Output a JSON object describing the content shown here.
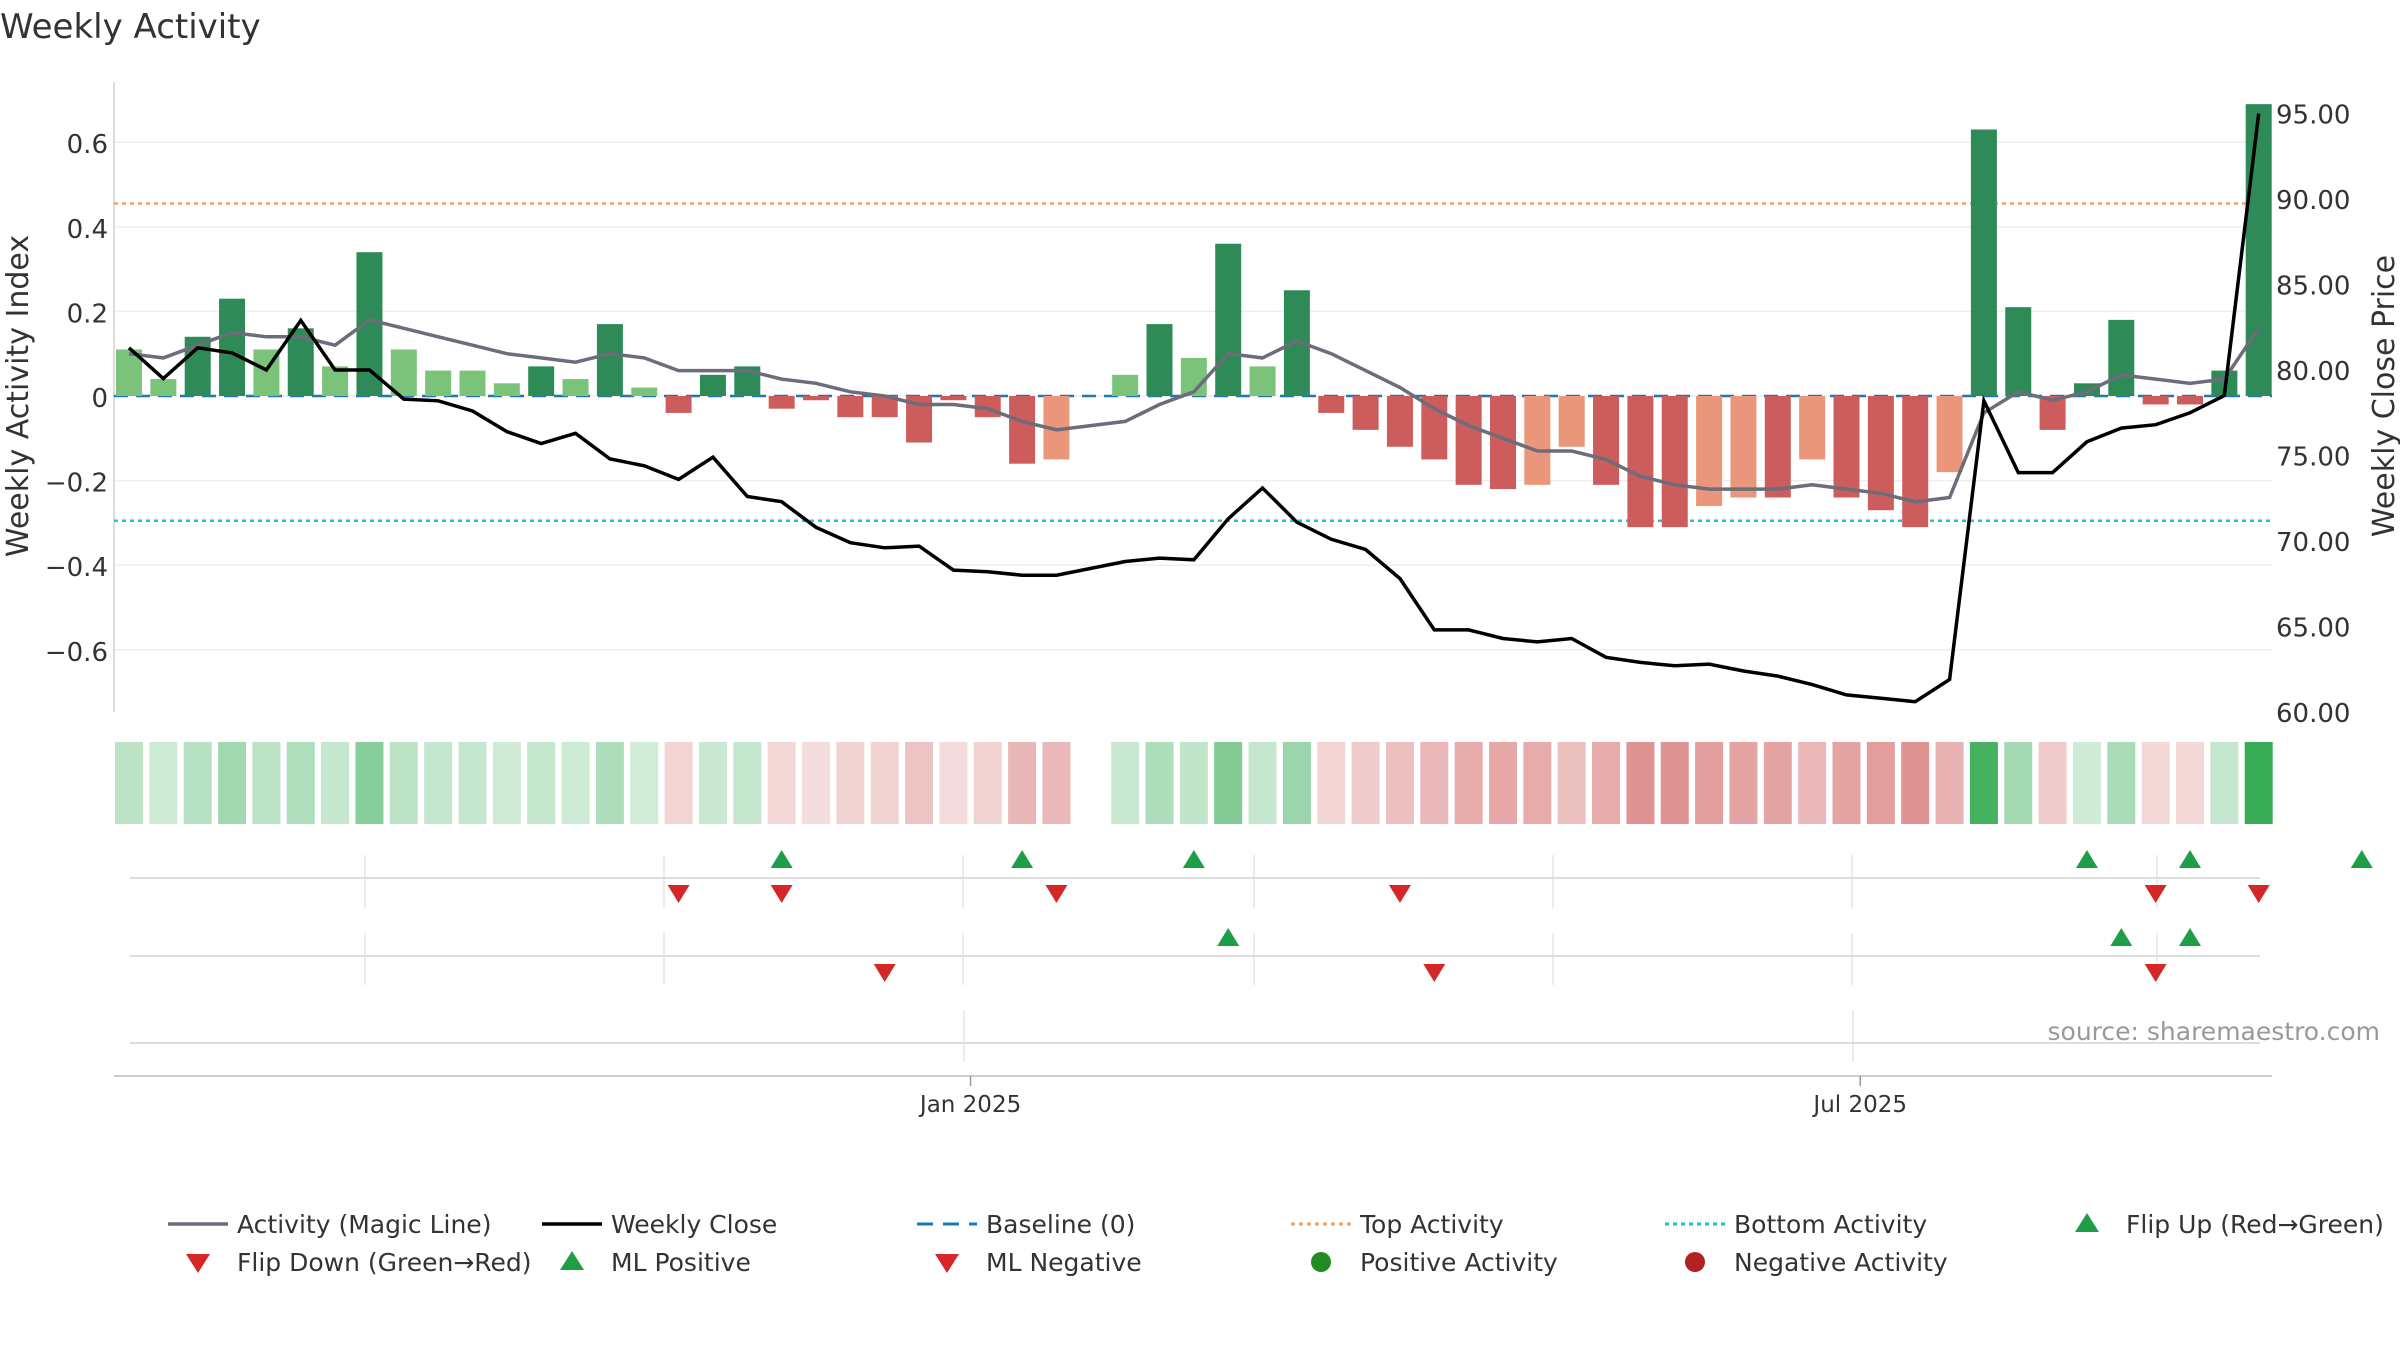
{
  "chart_data": {
    "type": "bar",
    "title": "Weekly Activity",
    "ylabel": "Weekly Activity Index",
    "y2label": "Weekly Close Price",
    "source": "source: sharemaestro.com",
    "ylim": [
      -0.75,
      0.75
    ],
    "y2lim": [
      60,
      97
    ],
    "yticks": [
      0.6,
      0.4,
      0.2,
      0,
      -0.2,
      -0.4,
      -0.6
    ],
    "ytick_labels": [
      "0.6",
      "0.4",
      "0.2",
      "0",
      "−0.2",
      "−0.4",
      "−0.6"
    ],
    "y2ticks": [
      95,
      90,
      85,
      80,
      75,
      70,
      65,
      60
    ],
    "y2tick_labels": [
      "95.00",
      "90.00",
      "85.00",
      "80.00",
      "75.00",
      "70.00",
      "65.00",
      "60.00"
    ],
    "xticks": [
      {
        "index": 24.5,
        "label": "Jan 2025"
      },
      {
        "index": 50.4,
        "label": "Jul 2025"
      }
    ],
    "reference_lines": {
      "top": 0.455,
      "bottom": -0.295,
      "baseline": 0
    },
    "activity": [
      0.11,
      0.04,
      0.14,
      0.23,
      0.11,
      0.16,
      0.07,
      0.34,
      0.11,
      0.06,
      0.06,
      0.03,
      0.07,
      0.04,
      0.17,
      0.02,
      -0.04,
      0.05,
      0.07,
      -0.03,
      -0.01,
      -0.05,
      -0.05,
      -0.11,
      -0.01,
      -0.05,
      -0.16,
      -0.15,
      null,
      0.05,
      0.17,
      0.09,
      0.36,
      0.07,
      0.25,
      -0.04,
      -0.08,
      -0.12,
      -0.15,
      -0.21,
      -0.22,
      -0.21,
      -0.12,
      -0.21,
      -0.31,
      -0.31,
      -0.26,
      -0.24,
      -0.24,
      -0.15,
      -0.24,
      -0.27,
      -0.31,
      -0.18,
      0.63,
      0.21,
      -0.08,
      0.03,
      0.18,
      -0.02,
      -0.02,
      0.06,
      0.69
    ],
    "magic_line": [
      0.1,
      0.09,
      0.12,
      0.15,
      0.14,
      0.14,
      0.12,
      0.18,
      0.16,
      0.14,
      0.12,
      0.1,
      0.09,
      0.08,
      0.1,
      0.09,
      0.06,
      0.06,
      0.06,
      0.04,
      0.03,
      0.01,
      0.0,
      -0.02,
      -0.02,
      -0.03,
      -0.06,
      -0.08,
      null,
      -0.06,
      -0.02,
      0.01,
      0.1,
      0.09,
      0.13,
      0.1,
      0.06,
      0.02,
      -0.03,
      -0.07,
      -0.1,
      -0.13,
      -0.13,
      -0.15,
      -0.19,
      -0.21,
      -0.22,
      -0.22,
      -0.22,
      -0.21,
      -0.22,
      -0.23,
      -0.25,
      -0.24,
      -0.04,
      0.01,
      -0.01,
      0.01,
      0.05,
      0.04,
      0.03,
      0.04,
      0.16
    ],
    "weekly_close": [
      81.3,
      79.5,
      81.3,
      81.0,
      80.0,
      82.9,
      80.0,
      80.0,
      78.3,
      78.2,
      77.6,
      76.4,
      75.7,
      76.3,
      74.8,
      74.4,
      73.6,
      74.9,
      72.6,
      72.3,
      70.8,
      69.9,
      69.6,
      69.7,
      68.3,
      68.2,
      68.0,
      68.0,
      null,
      68.8,
      69.0,
      68.9,
      71.3,
      73.1,
      71.1,
      70.1,
      69.5,
      67.8,
      64.8,
      64.8,
      64.3,
      64.1,
      64.3,
      63.2,
      62.9,
      62.7,
      62.8,
      62.4,
      62.1,
      61.6,
      61.0,
      60.8,
      60.6,
      61.9,
      78.2,
      74.0,
      74.0,
      75.8,
      76.6,
      76.8,
      77.5,
      78.5,
      95.0
    ],
    "flip_up": [
      19,
      26,
      31,
      57,
      60,
      65
    ],
    "flip_down": [
      16,
      19,
      27,
      37,
      59,
      62
    ],
    "ml_positive": [
      32,
      58,
      60
    ],
    "ml_negative": [
      22,
      38,
      59
    ],
    "positive_activity": [],
    "negative_activity": [],
    "colors": {
      "strong_green": "#2e8b57",
      "light_green": "#7bc27b",
      "red": "#cd5c5c",
      "salmon": "#e9967a",
      "magic_line": "#6c6c7a",
      "close_line": "#000000",
      "baseline": "#1f77b4",
      "top": "#f4a460",
      "bottom": "#20c7c7",
      "marker_green": "#1f9e48",
      "marker_red": "#d62728",
      "positive_dot": "#228b22",
      "negative_dot": "#b22222"
    },
    "legend": [
      {
        "label": "Activity (Magic Line)",
        "type": "line-solid-gray"
      },
      {
        "label": "Weekly Close",
        "type": "line-solid-black"
      },
      {
        "label": "Baseline (0)",
        "type": "line-dash-blue"
      },
      {
        "label": "Top Activity",
        "type": "line-dot-orange"
      },
      {
        "label": "Bottom Activity",
        "type": "line-dot-cyan"
      },
      {
        "label": "Flip Up (Red→Green)",
        "type": "triangle-up-green"
      },
      {
        "label": "Flip Down (Green→Red)",
        "type": "triangle-down-red"
      },
      {
        "label": "ML Positive",
        "type": "triangle-up-green"
      },
      {
        "label": "ML Negative",
        "type": "triangle-down-red"
      },
      {
        "label": "Positive Activity",
        "type": "dot-green"
      },
      {
        "label": "Negative Activity",
        "type": "dot-red"
      }
    ]
  }
}
